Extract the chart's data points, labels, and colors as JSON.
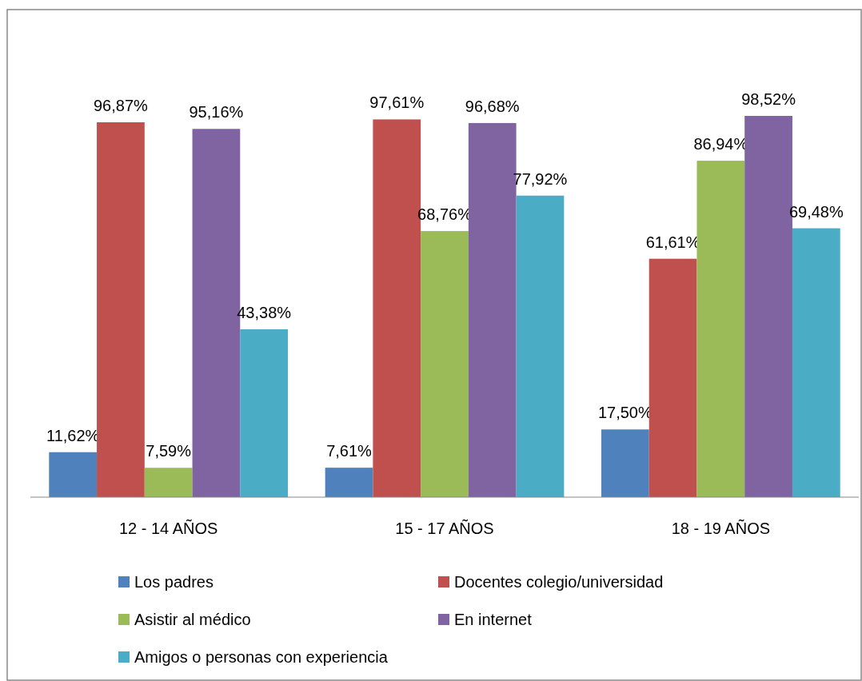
{
  "chart_data": {
    "type": "bar",
    "categories": [
      "12 - 14 AÑOS",
      "15 - 17 AÑOS",
      "18 - 19 AÑOS"
    ],
    "legend": "bottom",
    "series": [
      {
        "name": "Los padres",
        "color": "#4f81bd",
        "values": [
          11.62,
          7.61,
          17.5
        ],
        "value_labels": [
          "11,62%",
          "7,61%",
          "17,50%"
        ]
      },
      {
        "name": "Docentes colegio/universidad",
        "color": "#c0504d",
        "values": [
          96.87,
          97.61,
          61.61
        ],
        "value_labels": [
          "96,87%",
          "97,61%",
          "61,61%"
        ]
      },
      {
        "name": "Asistir al médico",
        "color": "#9bbb59",
        "values": [
          7.59,
          68.76,
          86.94
        ],
        "value_labels": [
          "7,59%",
          "68,76%",
          "86,94%"
        ]
      },
      {
        "name": "En internet",
        "color": "#8064a2",
        "values": [
          95.16,
          96.68,
          98.52
        ],
        "value_labels": [
          "95,16%",
          "96,68%",
          "98,52%"
        ]
      },
      {
        "name": "Amigos o personas con experiencia",
        "color": "#4bacc6",
        "values": [
          43.38,
          77.92,
          69.48
        ],
        "value_labels": [
          "43,38%",
          "77,92%",
          "69,48%"
        ]
      }
    ]
  }
}
